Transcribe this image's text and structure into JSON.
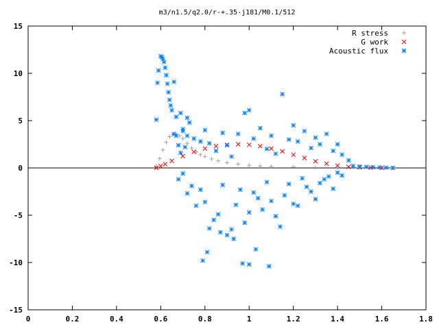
{
  "chart_data": {
    "type": "scatter",
    "title": "m3/n1.5/q2.0/r-+.35-j181/M0.1/512",
    "xlabel": "",
    "ylabel": "",
    "xlim": [
      0,
      1.8
    ],
    "ylim": [
      -15,
      15
    ],
    "xticks": [
      0,
      0.2,
      0.4,
      0.6,
      0.8,
      1,
      1.2,
      1.4,
      1.6,
      1.8
    ],
    "xtick_labels": [
      "0",
      "0.2",
      "0.4",
      "0.6",
      "0.8",
      "1",
      "1.2",
      "1.4",
      "1.6",
      "1.8"
    ],
    "yticks": [
      -15,
      -10,
      -5,
      0,
      5,
      10,
      15
    ],
    "ytick_labels": [
      "-15",
      "-10",
      "-5",
      "0",
      "5",
      "10",
      "15"
    ],
    "grid": false,
    "legend_position": "top-right",
    "series": [
      {
        "name": "R stress",
        "marker": "plus",
        "color": "#a0a0a0",
        "x": [
          0.58,
          0.595,
          0.61,
          0.625,
          0.64,
          0.655,
          0.67,
          0.685,
          0.7,
          0.72,
          0.74,
          0.76,
          0.78,
          0.8,
          0.83,
          0.86,
          0.9,
          0.95,
          1.0,
          1.05,
          1.1,
          1.2,
          1.3,
          1.4,
          1.5,
          1.6,
          1.65
        ],
        "y": [
          0.2,
          1.0,
          1.9,
          2.7,
          3.3,
          3.55,
          3.55,
          3.4,
          3.1,
          2.6,
          2.1,
          1.7,
          1.4,
          1.2,
          0.95,
          0.75,
          0.55,
          0.4,
          0.28,
          0.2,
          0.15,
          0.1,
          0.05,
          0.03,
          0.02,
          0.01,
          0.0
        ]
      },
      {
        "name": "G work",
        "marker": "cross",
        "color": "#ff0000",
        "x": [
          0.58,
          0.6,
          0.62,
          0.65,
          0.7,
          0.75,
          0.8,
          0.85,
          0.9,
          0.95,
          1.0,
          1.05,
          1.1,
          1.15,
          1.2,
          1.25,
          1.3,
          1.35,
          1.4,
          1.45,
          1.5,
          1.55,
          1.6,
          1.65
        ],
        "y": [
          0.0,
          0.2,
          0.4,
          0.75,
          1.25,
          1.7,
          2.05,
          2.3,
          2.45,
          2.5,
          2.45,
          2.3,
          2.05,
          1.75,
          1.4,
          1.05,
          0.7,
          0.45,
          0.25,
          0.12,
          0.06,
          0.03,
          0.01,
          0.0
        ]
      },
      {
        "name": "Acoustic flux",
        "marker": "star",
        "color": "#0080ff",
        "x": [
          0.58,
          0.585,
          0.59,
          0.6,
          0.605,
          0.61,
          0.615,
          0.62,
          0.625,
          0.63,
          0.635,
          0.64,
          0.645,
          0.65,
          0.66,
          0.67,
          0.68,
          0.69,
          0.7,
          0.71,
          0.72,
          0.73,
          0.66,
          0.67,
          0.69,
          0.7,
          0.72,
          0.75,
          0.78,
          0.8,
          0.82,
          0.85,
          0.88,
          0.9,
          0.92,
          0.95,
          0.98,
          1.0,
          1.02,
          1.05,
          1.08,
          1.1,
          1.12,
          1.15,
          1.18,
          1.2,
          1.22,
          1.25,
          1.28,
          1.3,
          1.32,
          1.35,
          1.38,
          1.4,
          1.42,
          1.45,
          0.68,
          0.72,
          0.76,
          0.8,
          0.84,
          0.88,
          0.92,
          0.96,
          1.0,
          1.04,
          1.08,
          1.12,
          1.16,
          1.2,
          1.24,
          1.28,
          1.32,
          1.36,
          1.4,
          0.7,
          0.74,
          0.78,
          0.82,
          0.86,
          0.9,
          0.94,
          0.98,
          1.02,
          1.06,
          1.1,
          1.14,
          1.18,
          1.22,
          1.26,
          1.3,
          1.34,
          1.38,
          1.42,
          0.79,
          0.81,
          0.87,
          0.93,
          0.97,
          1.0,
          1.03,
          1.09,
          1.47,
          1.5,
          1.53,
          1.56,
          1.59,
          1.62,
          1.65
        ],
        "y": [
          5.1,
          9.0,
          10.3,
          11.8,
          11.7,
          11.5,
          11.2,
          10.6,
          9.8,
          8.9,
          8.0,
          7.2,
          6.6,
          6.1,
          3.6,
          3.4,
          2.4,
          1.6,
          3.9,
          2.2,
          5.3,
          4.8,
          9.1,
          5.4,
          5.8,
          4.1,
          3.4,
          3.1,
          2.8,
          4.0,
          2.6,
          1.8,
          3.7,
          2.4,
          1.2,
          3.6,
          5.8,
          6.1,
          3.1,
          4.2,
          2.0,
          3.4,
          1.5,
          7.8,
          3.0,
          4.5,
          2.8,
          3.9,
          2.1,
          3.2,
          2.5,
          3.6,
          1.8,
          2.5,
          1.4,
          0.8,
          -1.2,
          -2.7,
          -4.0,
          -3.6,
          -5.5,
          -1.8,
          -6.5,
          -2.3,
          -4.7,
          -3.2,
          -1.5,
          -5.1,
          -2.9,
          -3.8,
          -1.1,
          -2.5,
          -1.6,
          -0.9,
          -0.5,
          -0.6,
          -1.9,
          -2.3,
          -6.4,
          -4.9,
          -7.1,
          -3.9,
          -5.8,
          -2.6,
          -4.4,
          -3.5,
          -6.2,
          -1.7,
          -4.0,
          -2.0,
          -3.3,
          -1.2,
          -2.2,
          -0.8,
          -9.8,
          -8.9,
          -6.8,
          -7.5,
          -10.1,
          -10.2,
          -8.6,
          -10.4,
          0.2,
          0.15,
          0.12,
          0.08,
          0.05,
          0.03,
          0.0
        ]
      }
    ]
  }
}
